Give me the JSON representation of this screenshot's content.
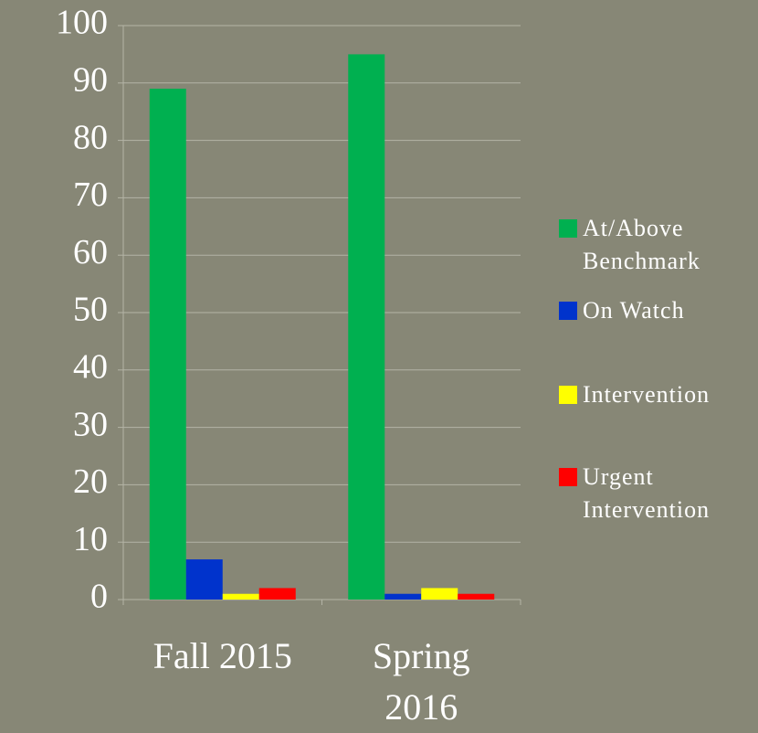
{
  "chart_data": {
    "type": "bar",
    "categories": [
      "Fall 2015",
      "Spring 2016"
    ],
    "series": [
      {
        "name": "At/Above Benchmark",
        "color": "#00b050",
        "values": [
          89,
          95
        ]
      },
      {
        "name": "On Watch",
        "color": "#0033cc",
        "values": [
          7,
          1
        ]
      },
      {
        "name": "Intervention",
        "color": "#ffff00",
        "values": [
          1,
          2
        ]
      },
      {
        "name": "Urgent Intervention",
        "color": "#ff0000",
        "values": [
          2,
          1
        ]
      }
    ],
    "ylim": [
      0,
      100
    ],
    "yticks": [
      0,
      10,
      20,
      30,
      40,
      50,
      60,
      70,
      80,
      90,
      100
    ],
    "grid": true,
    "legend": "right"
  }
}
